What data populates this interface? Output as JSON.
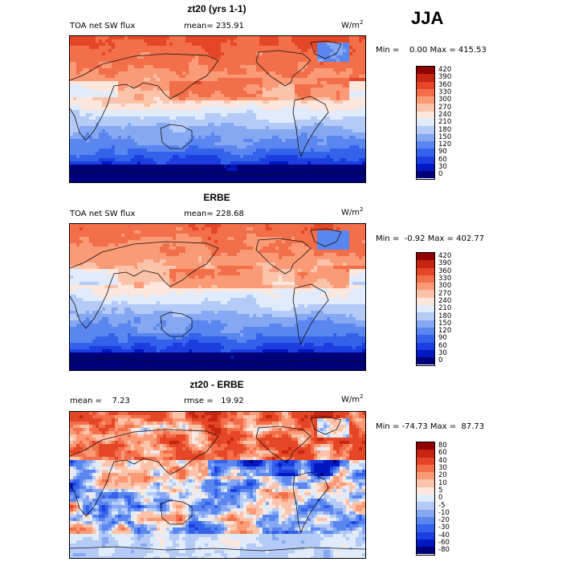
{
  "season": "JJA",
  "panels": [
    {
      "title": "zt20 (yrs 1-1)",
      "left_label": "TOA net SW flux",
      "stat1": "mean= 235.91",
      "stat2": "",
      "units": "W/m",
      "units_sup": "2",
      "minmax": "Min =    0.00 Max = 415.53",
      "field": "model"
    },
    {
      "title": "ERBE",
      "left_label": "TOA net SW flux",
      "stat1": "mean= 228.68",
      "stat2": "",
      "units": "W/m",
      "units_sup": "2",
      "minmax": "Min =  -0.92 Max = 402.77",
      "field": "obs"
    },
    {
      "title": "zt20 - ERBE",
      "left_label": "mean =    7.23",
      "stat1": "rmse =   19.92",
      "stat2": "",
      "units": "W/m",
      "units_sup": "2",
      "minmax": "Min = -74.73 Max =  87.73",
      "field": "diff"
    }
  ],
  "chart_data": [
    {
      "type": "heatmap",
      "title": "zt20 (yrs 1-1)",
      "variable": "TOA net SW flux",
      "units": "W/m2",
      "mean": 235.91,
      "min": 0.0,
      "max": 415.53,
      "levels": [
        0,
        30,
        60,
        90,
        120,
        150,
        180,
        210,
        240,
        270,
        300,
        330,
        360,
        390,
        420
      ],
      "colors": [
        "#00007a",
        "#0018c0",
        "#1c3ee0",
        "#3462ea",
        "#5a86ef",
        "#86a8f2",
        "#b4cbf7",
        "#e0ebfb",
        "#fde6dc",
        "#fcc3ab",
        "#fa9a76",
        "#f36f49",
        "#e54726",
        "#c62511",
        "#8f0000"
      ]
    },
    {
      "type": "heatmap",
      "title": "ERBE",
      "variable": "TOA net SW flux",
      "units": "W/m2",
      "mean": 228.68,
      "min": -0.92,
      "max": 402.77,
      "levels": [
        0,
        30,
        60,
        90,
        120,
        150,
        180,
        210,
        240,
        270,
        300,
        330,
        360,
        390,
        420
      ],
      "colors": [
        "#00007a",
        "#0018c0",
        "#1c3ee0",
        "#3462ea",
        "#5a86ef",
        "#86a8f2",
        "#b4cbf7",
        "#e0ebfb",
        "#fde6dc",
        "#fcc3ab",
        "#fa9a76",
        "#f36f49",
        "#e54726",
        "#c62511",
        "#8f0000"
      ]
    },
    {
      "type": "heatmap",
      "title": "zt20 - ERBE",
      "variable": "difference",
      "units": "W/m2",
      "mean": 7.23,
      "rmse": 19.92,
      "min": -74.73,
      "max": 87.73,
      "levels": [
        -80,
        -60,
        -40,
        -30,
        -20,
        -10,
        -5,
        0,
        5,
        10,
        20,
        30,
        40,
        60,
        80
      ],
      "colors": [
        "#00007a",
        "#0018c0",
        "#1c3ee0",
        "#3462ea",
        "#5a86ef",
        "#86a8f2",
        "#b4cbf7",
        "#e0ebfb",
        "#fde6dc",
        "#fcc3ab",
        "#fa9a76",
        "#f36f49",
        "#e54726",
        "#c62511",
        "#8f0000"
      ]
    }
  ]
}
